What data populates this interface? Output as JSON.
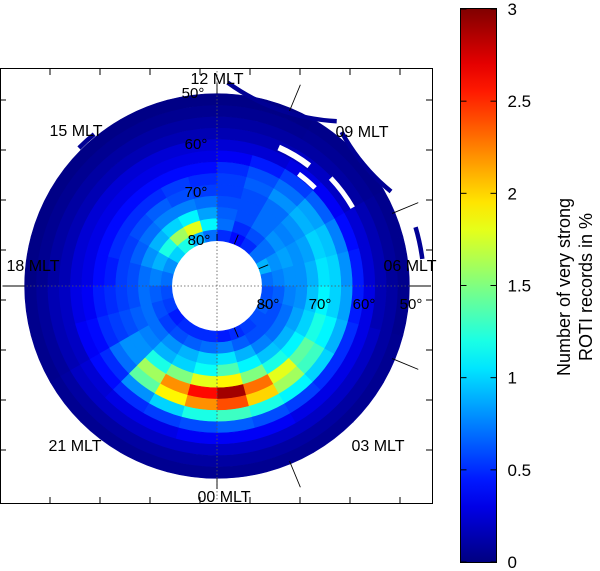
{
  "chart_data": {
    "type": "heatmap",
    "projection": "polar magnetic latitude / magnetic local time",
    "mlt_labels": [
      "12 MLT",
      "15 MLT",
      "09 MLT",
      "18 MLT",
      "06 MLT",
      "21 MLT",
      "03 MLT",
      "00 MLT"
    ],
    "lat_tick_labels": [
      "50°",
      "60°",
      "70°",
      "80°",
      "80°",
      "70°",
      "60°",
      "50°"
    ],
    "lat_range": [
      52,
      90
    ],
    "data_lat_range": [
      55,
      80
    ],
    "colorbar": {
      "label_line1": "Number of very strong",
      "label_line2": "ROTI records in %",
      "ticks": [
        "0",
        "0.5",
        "1",
        "1.5",
        "2",
        "2.5",
        "3"
      ],
      "min": 0,
      "max": 3,
      "colormap": "jet"
    },
    "lat_bins": [
      80,
      78,
      76,
      74,
      72,
      70,
      68,
      66,
      64,
      62,
      60,
      58,
      56
    ],
    "mlt_bins": [
      "00",
      "01",
      "02",
      "03",
      "04",
      "05",
      "06",
      "07",
      "08",
      "09",
      "10",
      "11",
      "12",
      "13",
      "14",
      "15",
      "16",
      "17",
      "18",
      "19",
      "20",
      "21",
      "22",
      "23"
    ],
    "values": [
      [
        0.45,
        0.5,
        0.55,
        0.6,
        0.65,
        0.6,
        0.7,
        0.9,
        0.7,
        0.5,
        0.4,
        0.5,
        0.7,
        0.9,
        1.2,
        1.0,
        0.8,
        0.7,
        0.6,
        0.55,
        0.45,
        0.5,
        0.5,
        0.5
      ],
      [
        0.75,
        0.65,
        0.6,
        0.6,
        0.6,
        0.65,
        0.75,
        0.8,
        0.7,
        0.6,
        0.5,
        0.7,
        1.1,
        1.8,
        1.6,
        1.2,
        0.9,
        0.75,
        0.65,
        0.6,
        0.55,
        0.6,
        0.65,
        0.7
      ],
      [
        1.05,
        0.9,
        0.75,
        0.7,
        0.7,
        0.75,
        0.8,
        0.85,
        0.8,
        0.7,
        0.6,
        0.65,
        0.85,
        1.1,
        1.0,
        0.9,
        0.8,
        0.7,
        0.7,
        0.7,
        0.7,
        0.8,
        0.9,
        1.0
      ],
      [
        1.35,
        1.1,
        0.95,
        0.9,
        0.85,
        0.8,
        0.8,
        0.8,
        0.75,
        0.7,
        0.6,
        0.6,
        0.7,
        0.75,
        0.75,
        0.7,
        0.65,
        0.6,
        0.6,
        0.65,
        0.75,
        0.9,
        1.0,
        1.15
      ],
      [
        1.9,
        1.5,
        1.2,
        1.1,
        1.0,
        0.95,
        0.9,
        0.85,
        0.8,
        0.7,
        0.6,
        0.55,
        0.55,
        0.6,
        0.65,
        0.6,
        0.55,
        0.55,
        0.55,
        0.6,
        0.8,
        1.2,
        1.5,
        1.8
      ],
      [
        2.9,
        2.3,
        1.8,
        1.4,
        1.2,
        1.1,
        1.05,
        1.0,
        0.9,
        0.8,
        0.65,
        0.55,
        0.5,
        0.55,
        0.5,
        0.5,
        0.5,
        0.45,
        0.5,
        0.55,
        0.8,
        1.6,
        2.2,
        2.6
      ],
      [
        2.4,
        2.0,
        1.6,
        1.3,
        1.1,
        1.0,
        1.0,
        0.95,
        0.85,
        0.7,
        0.6,
        0.5,
        0.4,
        0.4,
        0.4,
        0.4,
        0.4,
        0.4,
        0.45,
        0.5,
        0.7,
        1.4,
        1.9,
        2.2
      ],
      [
        1.3,
        1.2,
        1.1,
        1.0,
        0.9,
        0.85,
        0.8,
        0.75,
        0.65,
        0.55,
        0.45,
        0.35,
        0.3,
        0.3,
        0.3,
        0.3,
        0.3,
        0.3,
        0.35,
        0.4,
        0.5,
        0.8,
        1.0,
        1.2
      ],
      [
        0.65,
        0.6,
        0.55,
        0.5,
        0.5,
        0.45,
        0.45,
        0.4,
        0.35,
        0.3,
        0.25,
        0.25,
        0.25,
        0.25,
        0.25,
        0.25,
        0.25,
        0.25,
        0.3,
        0.35,
        0.4,
        0.5,
        0.55,
        0.6
      ],
      [
        0.35,
        0.35,
        0.3,
        0.3,
        0.3,
        0.3,
        0.25,
        0.25,
        0.2,
        0.2,
        0.15,
        0.15,
        0.15,
        0.15,
        0.15,
        0.15,
        0.15,
        0.15,
        0.2,
        0.2,
        0.25,
        0.3,
        0.3,
        0.35
      ],
      [
        0.2,
        0.2,
        0.2,
        0.2,
        0.2,
        0.15,
        0.15,
        0.15,
        0.1,
        0.1,
        0.1,
        0.1,
        0.1,
        0.1,
        0.1,
        0.1,
        0.1,
        0.1,
        0.15,
        0.15,
        0.2,
        0.2,
        0.2,
        0.2
      ],
      [
        0.1,
        0.1,
        0.1,
        0.1,
        0.1,
        0.1,
        0.08,
        0.08,
        0.06,
        0.06,
        0.05,
        0.05,
        0.05,
        0.05,
        0.05,
        0.05,
        0.05,
        0.05,
        0.08,
        0.08,
        0.1,
        0.1,
        0.1,
        0.1
      ],
      [
        0.05,
        0.05,
        0.05,
        0.05,
        0.05,
        0.04,
        0.04,
        0.04,
        0.03,
        0.03,
        0.02,
        0.02,
        0.02,
        0.02,
        0.02,
        0.02,
        0.02,
        0.02,
        0.04,
        0.04,
        0.05,
        0.05,
        0.05,
        0.05
      ]
    ],
    "grid": false
  }
}
